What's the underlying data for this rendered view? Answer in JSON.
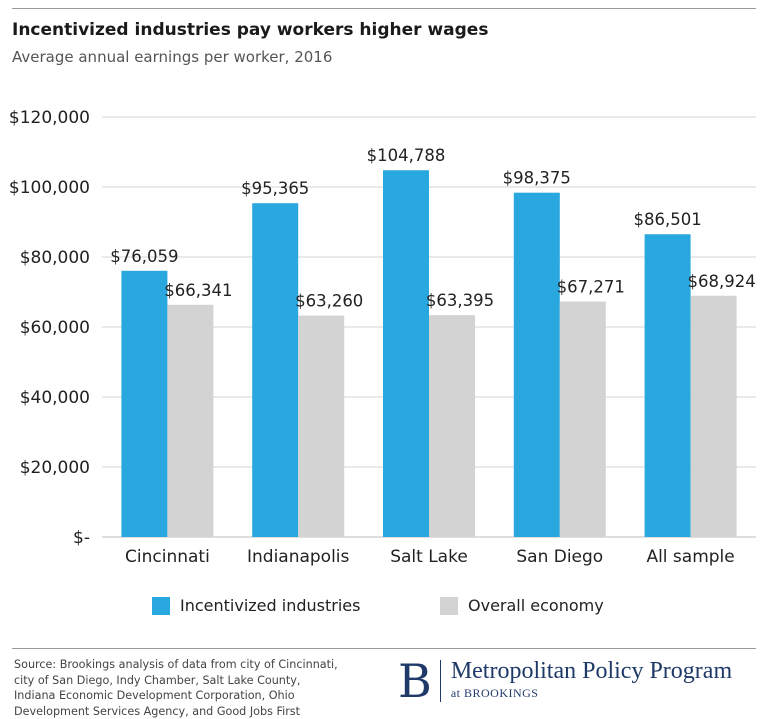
{
  "header": {
    "title": "Incentivized industries pay workers higher wages",
    "subtitle": "Average annual earnings per worker, 2016"
  },
  "chart_data": {
    "type": "bar",
    "categories": [
      "Cincinnati",
      "Indianapolis",
      "Salt Lake",
      "San Diego",
      "All sample"
    ],
    "series": [
      {
        "name": "Incentivized industries",
        "values": [
          76059,
          95365,
          104788,
          98375,
          86501
        ],
        "labels": [
          "$76,059",
          "$95,365",
          "$104,788",
          "$98,375",
          "$86,501"
        ],
        "color": "#29a8e0"
      },
      {
        "name": "Overall economy",
        "values": [
          66341,
          63260,
          63395,
          67271,
          68924
        ],
        "labels": [
          "$66,341",
          "$63,260",
          "$63,395",
          "$67,271",
          "$68,924"
        ],
        "color": "#d3d3d3"
      }
    ],
    "yticks": [
      0,
      20000,
      40000,
      60000,
      80000,
      100000,
      120000
    ],
    "ytick_labels": [
      "$-",
      "$20,000",
      "$40,000",
      "$60,000",
      "$80,000",
      "$100,000",
      "$120,000"
    ],
    "ylim": [
      0,
      120000
    ],
    "grid": true,
    "title": "Incentivized industries pay workers higher wages",
    "subtitle": "Average annual earnings per worker, 2016",
    "xlabel": "",
    "ylabel": "",
    "legend": "bottom-center"
  },
  "footer": {
    "source": "Source: Brookings analysis of data from city of Cincinnati, city of San Diego, Indy Chamber, Salt Lake County, Indiana Economic Development Corporation, Ohio Development Services Agency, and Good Jobs First",
    "logo_mark": "B",
    "program": "Metropolitan Policy Program",
    "at": "at BROOKINGS",
    "brand_color": "#1f3a68"
  }
}
